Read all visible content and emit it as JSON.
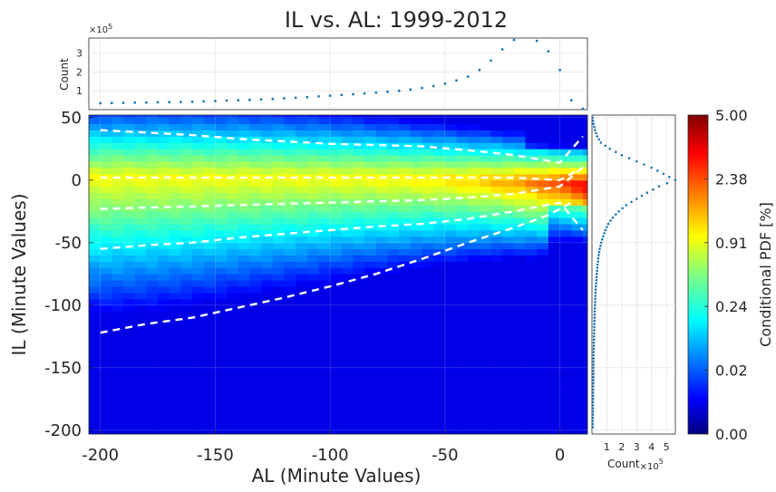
{
  "chart_data": {
    "type": "heatmap",
    "title": "IL vs. AL: 1999-2012",
    "main": {
      "xlabel": "AL (Minute Values)",
      "ylabel": "IL (Minute Values)",
      "xlim": [
        -205,
        12
      ],
      "ylim": [
        -203,
        52
      ],
      "xticks": [
        -200,
        -150,
        -100,
        -50,
        0
      ],
      "yticks": [
        50,
        0,
        -50,
        -100,
        -150,
        -200
      ],
      "quantile_lines": [
        {
          "x": [
            -200,
            -180,
            -160,
            -140,
            -120,
            -100,
            -80,
            -60,
            -40,
            -20,
            0,
            10
          ],
          "y": [
            40,
            38,
            36,
            33,
            31,
            29,
            28,
            27,
            24,
            20,
            14,
            35
          ]
        },
        {
          "x": [
            -200,
            -180,
            -160,
            -140,
            -120,
            -100,
            -80,
            -60,
            -40,
            -20,
            0,
            10
          ],
          "y": [
            2,
            2,
            2,
            2,
            2,
            2,
            2,
            2,
            2,
            2,
            0,
            10
          ]
        },
        {
          "x": [
            -200,
            -180,
            -160,
            -140,
            -120,
            -100,
            -80,
            -60,
            -40,
            -20,
            0,
            10
          ],
          "y": [
            -23,
            -22,
            -21,
            -20,
            -19,
            -18,
            -17,
            -16,
            -14,
            -11,
            -5,
            10
          ]
        },
        {
          "x": [
            -200,
            -180,
            -160,
            -140,
            -120,
            -100,
            -80,
            -60,
            -40,
            -20,
            0,
            10
          ],
          "y": [
            -55,
            -52,
            -50,
            -46,
            -43,
            -40,
            -37,
            -35,
            -31,
            -25,
            -18,
            -40
          ]
        },
        {
          "x": [
            -200,
            -180,
            -160,
            -140,
            -120,
            -100,
            -80,
            -60,
            -40,
            -20,
            -5,
            5
          ],
          "y": [
            -122,
            -115,
            -110,
            -102,
            -94,
            -85,
            -75,
            -63,
            -50,
            -38,
            -28,
            -18
          ]
        }
      ]
    },
    "top_histogram": {
      "ylabel": "Count",
      "exponent": "×10",
      "exponent_power": "5",
      "yticks": [
        "1",
        "2",
        "3"
      ],
      "ylim": [
        0,
        3.8
      ],
      "x": [
        -200,
        -195,
        -190,
        -185,
        -180,
        -175,
        -170,
        -165,
        -160,
        -155,
        -150,
        -145,
        -140,
        -135,
        -130,
        -125,
        -120,
        -115,
        -110,
        -105,
        -100,
        -95,
        -90,
        -85,
        -80,
        -75,
        -70,
        -65,
        -60,
        -55,
        -50,
        -45,
        -40,
        -35,
        -30,
        -25,
        -20,
        -15,
        -10,
        -5,
        0,
        5,
        10
      ],
      "values": [
        0.34,
        0.35,
        0.36,
        0.37,
        0.38,
        0.39,
        0.4,
        0.41,
        0.42,
        0.44,
        0.46,
        0.48,
        0.5,
        0.52,
        0.55,
        0.57,
        0.6,
        0.63,
        0.66,
        0.7,
        0.74,
        0.78,
        0.82,
        0.86,
        0.9,
        0.95,
        1.0,
        1.07,
        1.15,
        1.25,
        1.38,
        1.55,
        1.75,
        2.1,
        2.6,
        3.2,
        3.7,
        3.85,
        3.65,
        3.1,
        2.1,
        0.5,
        0.05
      ]
    },
    "right_histogram": {
      "xlabel": "Count",
      "exponent": "×10",
      "exponent_power": "5",
      "xticks": [
        "1",
        "2",
        "3",
        "4",
        "5"
      ],
      "xlim": [
        0,
        5.6
      ],
      "y": [
        50,
        45,
        40,
        35,
        30,
        25,
        20,
        15,
        10,
        5,
        0,
        -5,
        -10,
        -15,
        -20,
        -25,
        -30,
        -35,
        -40,
        -45,
        -50,
        -55,
        -60,
        -65,
        -70,
        -75,
        -80,
        -85,
        -90,
        -95,
        -100,
        -110,
        -120,
        -130,
        -140,
        -150,
        -160,
        -170,
        -180,
        -190,
        -200
      ],
      "values": [
        0.05,
        0.1,
        0.2,
        0.35,
        0.6,
        1.2,
        2.0,
        3.0,
        4.0,
        4.8,
        5.6,
        4.5,
        3.7,
        3.0,
        2.3,
        1.8,
        1.4,
        1.1,
        0.9,
        0.75,
        0.62,
        0.52,
        0.45,
        0.4,
        0.36,
        0.32,
        0.29,
        0.26,
        0.24,
        0.22,
        0.2,
        0.17,
        0.15,
        0.13,
        0.11,
        0.1,
        0.09,
        0.08,
        0.07,
        0.06,
        0.05
      ]
    },
    "colorbar": {
      "label": "Conditional PDF [%]",
      "tick_labels": [
        "5.00",
        "2.38",
        "0.91",
        "0.24",
        "0.02",
        "0.00"
      ],
      "colormap": "jet",
      "range_percent": [
        0,
        5
      ]
    },
    "grid": true
  }
}
